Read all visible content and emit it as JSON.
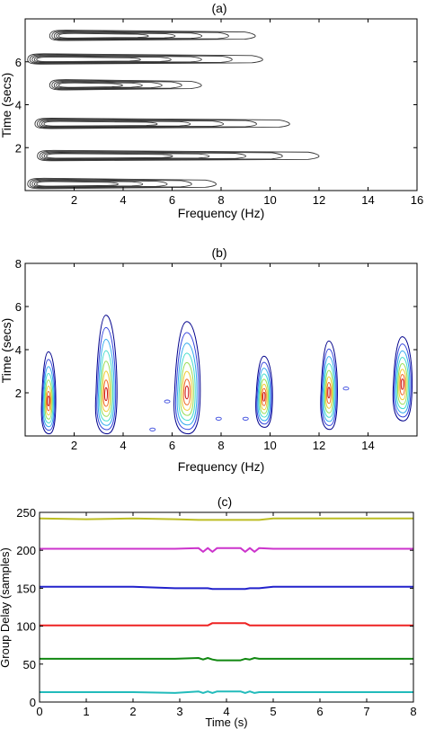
{
  "chart_data": [
    {
      "type": "contour",
      "title": "(a)",
      "xlabel": "Frequency (Hz)",
      "ylabel": "Time (secs)",
      "xlim": [
        0,
        16
      ],
      "ylim": [
        0,
        8
      ],
      "xticks": [
        2,
        4,
        6,
        8,
        10,
        12,
        14,
        16
      ],
      "yticks": [
        2,
        4,
        6
      ],
      "xtick_labels": [
        "2",
        "4",
        "6",
        "8",
        "10",
        "12",
        "14",
        "16"
      ],
      "ytick_labels": [
        "2",
        "4",
        "6"
      ],
      "line_color": "#333333",
      "bands": [
        {
          "time": 0.3,
          "freq_start": 0.1,
          "freq_end": 7.8
        },
        {
          "time": 1.6,
          "freq_start": 0.5,
          "freq_end": 12.0
        },
        {
          "time": 3.1,
          "freq_start": 0.4,
          "freq_end": 10.8
        },
        {
          "time": 4.9,
          "freq_start": 1.0,
          "freq_end": 7.2
        },
        {
          "time": 6.1,
          "freq_start": 0.1,
          "freq_end": 9.7
        },
        {
          "time": 7.2,
          "freq_start": 1.0,
          "freq_end": 9.4
        }
      ]
    },
    {
      "type": "contour",
      "title": "(b)",
      "xlabel": "Frequency (Hz)",
      "ylabel": "Time (secs)",
      "xlim": [
        0,
        16
      ],
      "ylim": [
        0,
        8
      ],
      "xticks": [
        2,
        4,
        6,
        8,
        10,
        12,
        14
      ],
      "yticks": [
        2,
        4,
        6,
        8
      ],
      "xtick_labels": [
        "2",
        "4",
        "6",
        "8",
        "10",
        "12",
        "14"
      ],
      "ytick_labels": [
        "2",
        "4",
        "6",
        "8"
      ],
      "colors": [
        "#00008b",
        "#3344dd",
        "#33aaee",
        "#44ddcc",
        "#99dd55",
        "#eecc33",
        "#ee6622",
        "#cc1111"
      ],
      "blobs": [
        {
          "freq": 0.95,
          "t_low": 0.1,
          "t_high": 3.9,
          "t_peak": 1.7,
          "half_width": 0.3
        },
        {
          "freq": 3.3,
          "t_low": 0.1,
          "t_high": 5.6,
          "t_peak": 2.0,
          "half_width": 0.45
        },
        {
          "freq": 6.6,
          "t_low": 0.1,
          "t_high": 5.3,
          "t_peak": 2.1,
          "half_width": 0.55
        },
        {
          "freq": 9.75,
          "t_low": 0.4,
          "t_high": 3.7,
          "t_peak": 1.9,
          "half_width": 0.35
        },
        {
          "freq": 12.4,
          "t_low": 0.3,
          "t_high": 4.4,
          "t_peak": 2.1,
          "half_width": 0.35
        },
        {
          "freq": 15.4,
          "t_low": 0.7,
          "t_high": 4.6,
          "t_peak": 2.5,
          "half_width": 0.4
        }
      ],
      "specks": [
        {
          "freq": 5.2,
          "time": 0.3
        },
        {
          "freq": 5.8,
          "time": 1.6
        },
        {
          "freq": 7.9,
          "time": 0.8
        },
        {
          "freq": 9.0,
          "time": 0.8
        },
        {
          "freq": 13.1,
          "time": 2.2
        }
      ]
    },
    {
      "type": "line",
      "title": "(c)",
      "xlabel": "Time (s)",
      "ylabel": "Group Delay (samples)",
      "xlim": [
        0,
        8
      ],
      "ylim": [
        0,
        250
      ],
      "xticks": [
        0,
        1,
        2,
        3,
        4,
        5,
        6,
        7,
        8
      ],
      "yticks": [
        0,
        50,
        100,
        150,
        200,
        250
      ],
      "xtick_labels": [
        "0",
        "1",
        "2",
        "3",
        "4",
        "5",
        "6",
        "7",
        "8"
      ],
      "ytick_labels": [
        "0",
        "50",
        "100",
        "150",
        "200",
        "250"
      ],
      "x": [
        0,
        1,
        2,
        2.9,
        3.4,
        3.5,
        3.6,
        3.7,
        3.8,
        4.3,
        4.4,
        4.5,
        4.6,
        4.7,
        5.0,
        6.0,
        7.0,
        8.0
      ],
      "series": [
        {
          "color": "#bcbd22",
          "values": [
            242,
            241,
            242,
            241,
            240,
            240,
            240,
            240,
            240,
            240,
            240,
            240,
            240,
            240,
            242,
            242,
            242,
            242
          ]
        },
        {
          "color": "#cc33cc",
          "values": [
            202,
            202,
            202,
            202,
            203,
            198,
            203,
            198,
            203,
            203,
            198,
            203,
            198,
            203,
            202,
            202,
            202,
            202
          ]
        },
        {
          "color": "#2222cc",
          "values": [
            152,
            152,
            152,
            150,
            150,
            150,
            150,
            149,
            149,
            149,
            149,
            150,
            150,
            150,
            152,
            152,
            152,
            152
          ]
        },
        {
          "color": "#ee2222",
          "values": [
            101,
            101,
            101,
            101,
            101,
            101,
            101,
            104,
            104,
            104,
            104,
            101,
            101,
            101,
            101,
            101,
            101,
            101
          ]
        },
        {
          "color": "#118811",
          "values": [
            57,
            57,
            57,
            57,
            58,
            56,
            58,
            56,
            55,
            55,
            57,
            56,
            58,
            57,
            57,
            57,
            57,
            57
          ]
        },
        {
          "color": "#22bbbb",
          "values": [
            13,
            13,
            13,
            12,
            14,
            12,
            14,
            12,
            14,
            14,
            12,
            14,
            12,
            13,
            13,
            13,
            13,
            13
          ]
        }
      ]
    }
  ]
}
